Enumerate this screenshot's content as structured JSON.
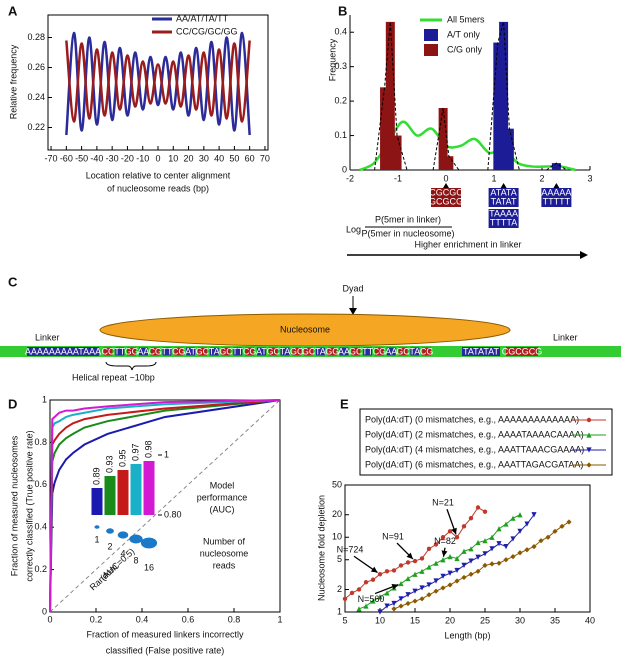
{
  "chart_data": [
    {
      "panel": "A",
      "type": "line",
      "smooth": true,
      "ylabel": "Relative frequency",
      "xlabel": [
        "Location relative to center alignment",
        "of nucleosome reads (bp)"
      ],
      "x": [
        -60,
        -55,
        -50,
        -45,
        -40,
        -35,
        -30,
        -25,
        -20,
        -15,
        -10,
        -5,
        0,
        5,
        10,
        15,
        20,
        25,
        30,
        35,
        40,
        45,
        50,
        55,
        60
      ],
      "series": [
        {
          "name": "AA/AT/TA/TT",
          "color": "#2b2b9a",
          "values": [
            0.215,
            0.283,
            0.218,
            0.28,
            0.222,
            0.277,
            0.225,
            0.273,
            0.228,
            0.27,
            0.232,
            0.267,
            0.235,
            0.267,
            0.232,
            0.27,
            0.228,
            0.273,
            0.225,
            0.277,
            0.222,
            0.28,
            0.218,
            0.283,
            0.215
          ]
        },
        {
          "name": "CC/CG/GC/GG",
          "color": "#9b1c1c",
          "values": [
            0.278,
            0.224,
            0.276,
            0.226,
            0.272,
            0.228,
            0.27,
            0.232,
            0.268,
            0.234,
            0.264,
            0.236,
            0.262,
            0.236,
            0.264,
            0.234,
            0.268,
            0.232,
            0.27,
            0.228,
            0.272,
            0.226,
            0.276,
            0.224,
            0.278
          ]
        }
      ],
      "xlim": [
        -72,
        72
      ],
      "xticks": [
        -70,
        -60,
        -50,
        -40,
        -30,
        -20,
        -10,
        0,
        10,
        20,
        30,
        40,
        50,
        60,
        70
      ],
      "ylim": [
        0.205,
        0.295
      ],
      "yticks": [
        0.22,
        0.24,
        0.26,
        0.28
      ]
    },
    {
      "panel": "B",
      "type": "bar_line",
      "ylabel": "Frequency",
      "xlabel": {
        "log": "Log",
        "numerator": "P(5mer in linker)",
        "denominator": "P(5mer in nucleosome)"
      },
      "arrow_label": "Higher enrichment in linker",
      "series": [
        {
          "name": "All 5mers",
          "kind": "line",
          "color": "#33dd33",
          "x": [
            -1.8,
            -1.5,
            -1.2,
            -0.9,
            -0.6,
            -0.3,
            0,
            0.3,
            0.6,
            0.9,
            1.2,
            1.5,
            1.8,
            2.1,
            2.4,
            2.7
          ],
          "values": [
            0,
            0.02,
            0.08,
            0.14,
            0.1,
            0.12,
            0.07,
            0.07,
            0.09,
            0.05,
            0.06,
            0.02,
            0.01,
            0.01,
            0.01,
            0
          ]
        },
        {
          "name": "A/T only",
          "kind": "bar",
          "color": "#1c1c96",
          "x": [
            1.08,
            1.2,
            1.32,
            2.3
          ],
          "values": [
            0.37,
            0.43,
            0.12,
            0.02
          ]
        },
        {
          "name": "C/G only",
          "kind": "bar",
          "color": "#8c1414",
          "x": [
            -1.28,
            -1.16,
            -1.02,
            -0.06,
            0.06
          ],
          "values": [
            0.24,
            0.43,
            0.1,
            0.18,
            0.04
          ]
        }
      ],
      "kmer_boxes": [
        {
          "x": 0,
          "color": "#8c1414",
          "texts": [
            "CGCGC",
            "GCGCG"
          ]
        },
        {
          "x": 1.2,
          "color": "#1c1c96",
          "texts": [
            "ATATA",
            "TATAT"
          ]
        },
        {
          "x": 1.2,
          "color": "#1c1c96",
          "texts": [
            "TAAAA",
            "TTTTA"
          ]
        },
        {
          "x": 2.3,
          "color": "#1c1c96",
          "texts": [
            "AAAAA",
            "TTTTT"
          ]
        }
      ],
      "xlim": [
        -2,
        3
      ],
      "xticks": [
        -2,
        -1,
        0,
        1,
        2,
        3
      ],
      "ylim": [
        0,
        0.45
      ],
      "yticks": [
        0,
        0.1,
        0.2,
        0.3,
        0.4
      ]
    },
    {
      "panel": "D",
      "type": "roc",
      "ylabel": [
        "Fraction of measured nucleosomes",
        "correctly classified (True positive rate)"
      ],
      "xlabel": [
        "Fraction of measured linkers incorrectly",
        "classified (False positive rate)"
      ],
      "diagonal_label": [
        "Random",
        "(AUC=0.5)"
      ],
      "x": [
        0,
        0.01,
        0.02,
        0.04,
        0.07,
        0.1,
        0.15,
        0.25,
        0.5,
        1
      ],
      "series": [
        {
          "reads": 1,
          "auc": 0.89,
          "color": "#1a1ab0",
          "values": [
            0,
            0.56,
            0.61,
            0.67,
            0.72,
            0.75,
            0.79,
            0.84,
            0.92,
            1
          ]
        },
        {
          "reads": 2,
          "auc": 0.93,
          "color": "#1a8a1a",
          "values": [
            0,
            0.71,
            0.75,
            0.79,
            0.82,
            0.84,
            0.87,
            0.9,
            0.95,
            1
          ]
        },
        {
          "reads": 4,
          "auc": 0.95,
          "color": "#c41a1a",
          "values": [
            0,
            0.79,
            0.81,
            0.84,
            0.87,
            0.89,
            0.91,
            0.93,
            0.96,
            1
          ]
        },
        {
          "reads": 8,
          "auc": 0.97,
          "color": "#1ab0c8",
          "values": [
            0,
            0.87,
            0.89,
            0.9,
            0.92,
            0.93,
            0.94,
            0.96,
            0.98,
            1
          ]
        },
        {
          "reads": 16,
          "auc": 0.98,
          "color": "#d21ad2",
          "values": [
            0,
            0.91,
            0.92,
            0.94,
            0.95,
            0.95,
            0.96,
            0.97,
            0.99,
            1
          ]
        }
      ],
      "inset": {
        "ylim": [
          0.8,
          1
        ],
        "yticks": [
          1,
          {
            "value": 0.8,
            "label": "0.80"
          }
        ],
        "bar_label": [
          "Model",
          "performance",
          "(AUC)"
        ],
        "size_label": [
          "Number of",
          "nucleosome",
          "reads"
        ]
      },
      "xlim": [
        0,
        1
      ],
      "xticks": [
        0,
        0.2,
        0.4,
        0.6,
        0.8,
        1
      ],
      "ylim": [
        0,
        1
      ],
      "yticks": [
        0,
        0.2,
        0.4,
        0.6,
        0.8,
        1
      ]
    },
    {
      "panel": "E",
      "type": "line",
      "ylog": true,
      "xlabel": "Length (bp)",
      "ylabel": "Nucleosome fold depletion",
      "series": [
        {
          "name": "Poly(dA:dT) (0 mismatches, e.g., AAAAAAAAAAAAA)",
          "color": "#c0392b",
          "marker": "circle",
          "x": [
            5,
            6,
            7,
            8,
            9,
            10,
            11,
            12,
            13,
            14,
            15,
            16,
            17,
            18,
            19,
            20,
            21,
            22,
            23,
            24,
            25
          ],
          "values": [
            1.5,
            1.8,
            2,
            2.5,
            2.7,
            3.2,
            3.5,
            3.6,
            4.2,
            4.6,
            4.8,
            5.2,
            7,
            8,
            10,
            12,
            10,
            14,
            18,
            25,
            22
          ]
        },
        {
          "name": "Poly(dA:dT) (2 mismatches, e.g., AAAATAAAACAAAA)",
          "color": "#1f9e1f",
          "marker": "triangle-up",
          "x": [
            7,
            8,
            9,
            10,
            11,
            12,
            13,
            14,
            15,
            16,
            17,
            18,
            19,
            20,
            21,
            22,
            23,
            24,
            25,
            26,
            27,
            28,
            29,
            30
          ],
          "values": [
            1.1,
            1.2,
            1.4,
            1.6,
            1.8,
            2.1,
            2.4,
            2.8,
            3.2,
            3.5,
            4,
            4.5,
            5,
            5.5,
            5.2,
            6.5,
            7,
            8.5,
            9,
            10,
            13,
            15,
            18,
            20
          ]
        },
        {
          "name": "Poly(dA:dT) (4 mismatches, e.g., AAATTAAACGAAAA)",
          "color": "#1f1fa8",
          "marker": "triangle-down",
          "x": [
            10,
            11,
            12,
            13,
            14,
            15,
            16,
            17,
            18,
            19,
            20,
            21,
            22,
            23,
            24,
            25,
            26,
            27,
            28,
            29,
            30,
            31,
            32
          ],
          "values": [
            1,
            1.2,
            1.3,
            1.5,
            1.7,
            1.9,
            2.1,
            2.3,
            2.6,
            3,
            3.3,
            3.6,
            4.2,
            4.8,
            5.4,
            6,
            7,
            8.2,
            7.5,
            9.5,
            12,
            15,
            20
          ]
        },
        {
          "name": "Poly(dA:dT) (6 mismatches, e.g., AAATTAGACGATAA)",
          "color": "#8b5a00",
          "marker": "diamond",
          "x": [
            12,
            13,
            14,
            15,
            16,
            17,
            18,
            19,
            20,
            21,
            22,
            23,
            24,
            25,
            26,
            27,
            28,
            29,
            30,
            31,
            32,
            33,
            34,
            35,
            36,
            37
          ],
          "values": [
            1.1,
            1.2,
            1.3,
            1.4,
            1.5,
            1.7,
            1.9,
            2.1,
            2.3,
            2.6,
            2.9,
            3.2,
            3.5,
            4.2,
            4.4,
            4.5,
            5,
            5.5,
            6.2,
            6.8,
            7.5,
            9,
            10,
            12,
            14,
            16
          ]
        }
      ],
      "annotations": [
        {
          "text": "N=724",
          "x": 10,
          "y": 3.2
        },
        {
          "text": "N=560",
          "x": 13,
          "y": 2.4
        },
        {
          "text": "N=91",
          "x": 15,
          "y": 4.8
        },
        {
          "text": "N=82",
          "x": 19,
          "y": 5
        },
        {
          "text": "N=21",
          "x": 21,
          "y": 10
        }
      ],
      "xlim": [
        5,
        40
      ],
      "xticks": [
        5,
        10,
        15,
        20,
        25,
        30,
        35,
        40
      ],
      "ylim": [
        1,
        50
      ],
      "yticks": [
        1,
        2,
        5,
        10,
        20,
        50
      ]
    }
  ],
  "diagram": {
    "panel": "C",
    "dyad": "Dyad",
    "nucleosome": "Nucleosome",
    "linker_left": "Linker",
    "linker_right": "Linker",
    "left_seq": "AAAAAAAAATAAA",
    "dinucleotides": [
      "CC",
      "TT",
      "GG",
      "AA",
      "CG",
      "TT",
      "CG",
      "AT",
      "GC",
      "TA",
      "GC",
      "TT",
      "CG",
      "AT",
      "GC",
      "TA",
      "GC",
      "GC",
      "TA",
      "GG",
      "AA",
      "GC",
      "TT",
      "CG",
      "AA",
      "GC",
      "TA",
      "CG"
    ],
    "right_seq": [
      "TATATAT",
      "CGCGCG"
    ],
    "helical_repeat": "Helical repeat ~10bp"
  }
}
